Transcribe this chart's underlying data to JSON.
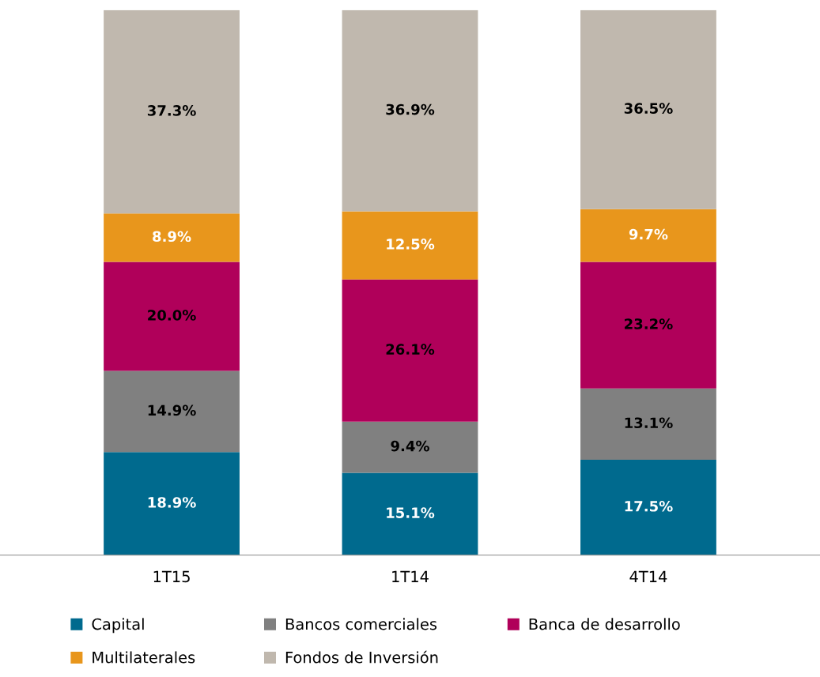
{
  "chart_data": {
    "type": "bar",
    "stacked": true,
    "categories": [
      "1T15",
      "1T14",
      "4T14"
    ],
    "series": [
      {
        "name": "Capital",
        "color": "#006a8e",
        "values": [
          18.9,
          15.1,
          17.5
        ],
        "value_labels": [
          "18.9%",
          "15.1%",
          "17.5%"
        ]
      },
      {
        "name": "Bancos comerciales",
        "color": "#808080",
        "values": [
          14.9,
          9.4,
          13.1
        ],
        "value_labels": [
          "14.9%",
          "9.4%",
          "13.1%"
        ]
      },
      {
        "name": "Banca de desarrollo",
        "color": "#b0005a",
        "values": [
          20.0,
          26.1,
          23.2
        ],
        "value_labels": [
          "20.0%",
          "26.1%",
          "23.2%"
        ]
      },
      {
        "name": "Multilaterales",
        "color": "#e8961c",
        "values": [
          8.9,
          12.5,
          9.7
        ],
        "value_labels": [
          "8.9%",
          "12.5%",
          "9.7%"
        ]
      },
      {
        "name": "Fondos de Inversión",
        "color": "#c0b8ae",
        "values": [
          37.3,
          36.9,
          36.5
        ],
        "value_labels": [
          "37.3%",
          "36.9%",
          "36.5%"
        ]
      }
    ],
    "legend": "bottom",
    "grid": false
  }
}
